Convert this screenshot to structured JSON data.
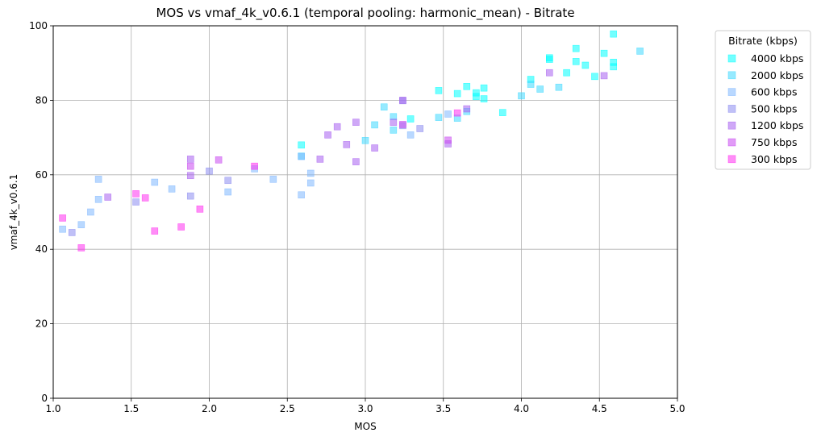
{
  "chart_data": {
    "type": "scatter",
    "title": "MOS vs vmaf_4k_v0.6.1 (temporal pooling: harmonic_mean) - Bitrate",
    "xlabel": "MOS",
    "ylabel": "vmaf_4k_v0.6.1",
    "xlim": [
      1.0,
      5.0
    ],
    "ylim": [
      0,
      100
    ],
    "xticks": [
      "1.0",
      "1.5",
      "2.0",
      "2.5",
      "3.0",
      "3.5",
      "4.0",
      "4.5",
      "5.0"
    ],
    "yticks": [
      "0",
      "20",
      "40",
      "60",
      "80",
      "100"
    ],
    "grid": true,
    "marker": "square",
    "legend": {
      "title": "Bitrate (kbps)",
      "placement": "outside-right"
    },
    "series": [
      {
        "name": "4000 kbps",
        "color": "#00ffff",
        "points": [
          [
            2.59,
            68
          ],
          [
            3.47,
            82.6
          ],
          [
            3.59,
            81.8
          ],
          [
            3.65,
            83.7
          ],
          [
            3.71,
            82
          ],
          [
            3.76,
            83.3
          ],
          [
            3.76,
            80.4
          ],
          [
            4.06,
            85.6
          ],
          [
            4.18,
            91.4
          ],
          [
            4.18,
            91
          ],
          [
            4.29,
            87.4
          ],
          [
            4.35,
            93.9
          ],
          [
            4.35,
            90.4
          ],
          [
            4.41,
            89.4
          ],
          [
            4.47,
            86.4
          ],
          [
            4.53,
            92.6
          ],
          [
            4.59,
            97.8
          ],
          [
            4.59,
            90.2
          ],
          [
            4.59,
            89
          ],
          [
            3.88,
            76.7
          ],
          [
            3.29,
            75
          ],
          [
            3.71,
            81
          ]
        ]
      },
      {
        "name": "2000 kbps",
        "color": "#40d8ff",
        "points": [
          [
            3.0,
            69.2
          ],
          [
            3.06,
            73.4
          ],
          [
            3.12,
            78.2
          ],
          [
            3.18,
            75.6
          ],
          [
            3.18,
            72
          ],
          [
            3.47,
            75.4
          ],
          [
            3.59,
            75.2
          ],
          [
            3.65,
            77
          ],
          [
            4.0,
            81.2
          ],
          [
            4.06,
            84.3
          ],
          [
            4.12,
            83
          ],
          [
            4.24,
            83.5
          ],
          [
            4.76,
            93.2
          ],
          [
            2.59,
            65
          ]
        ]
      },
      {
        "name": "600 kbps",
        "color": "#80b8ff",
        "points": [
          [
            1.06,
            45.4
          ],
          [
            1.18,
            46.6
          ],
          [
            1.24,
            50
          ],
          [
            1.29,
            53.4
          ],
          [
            1.29,
            58.8
          ],
          [
            1.65,
            58
          ],
          [
            1.76,
            56.2
          ],
          [
            2.12,
            55.4
          ],
          [
            2.29,
            61.6
          ],
          [
            2.41,
            58.8
          ],
          [
            2.59,
            64.9
          ],
          [
            2.59,
            54.6
          ],
          [
            2.65,
            60.4
          ],
          [
            2.65,
            57.8
          ],
          [
            3.29,
            70.7
          ],
          [
            3.53,
            76.3
          ]
        ]
      },
      {
        "name": "500 kbps",
        "color": "#8c8cf0",
        "points": [
          [
            1.12,
            44.5
          ],
          [
            1.53,
            52.7
          ],
          [
            1.88,
            54.3
          ],
          [
            2.0,
            61
          ],
          [
            2.12,
            58.5
          ],
          [
            3.24,
            79.9
          ],
          [
            3.35,
            72.4
          ],
          [
            3.24,
            73.2
          ]
        ]
      },
      {
        "name": "1200 kbps",
        "color": "#a860f0",
        "points": [
          [
            1.35,
            54
          ],
          [
            1.88,
            59.8
          ],
          [
            1.88,
            64.2
          ],
          [
            2.71,
            64.2
          ],
          [
            2.76,
            70.7
          ],
          [
            2.82,
            72.9
          ],
          [
            2.88,
            68.1
          ],
          [
            2.94,
            74.1
          ],
          [
            2.94,
            63.5
          ],
          [
            3.06,
            67.2
          ],
          [
            3.18,
            74.1
          ],
          [
            3.24,
            80
          ],
          [
            3.53,
            68.3
          ],
          [
            3.65,
            77.7
          ],
          [
            4.18,
            87.4
          ],
          [
            4.53,
            86.6
          ]
        ]
      },
      {
        "name": "750 kbps",
        "color": "#c848f0",
        "points": [
          [
            1.88,
            62.3
          ],
          [
            2.06,
            64
          ],
          [
            3.24,
            73.5
          ],
          [
            3.53,
            69.3
          ]
        ]
      },
      {
        "name": "300 kbps",
        "color": "#ff30f0",
        "points": [
          [
            1.06,
            48.4
          ],
          [
            1.18,
            40.4
          ],
          [
            1.53,
            54.9
          ],
          [
            1.59,
            53.8
          ],
          [
            1.65,
            44.9
          ],
          [
            1.82,
            46
          ],
          [
            1.94,
            50.8
          ],
          [
            2.29,
            62.3
          ],
          [
            3.59,
            76.6
          ]
        ]
      }
    ]
  }
}
